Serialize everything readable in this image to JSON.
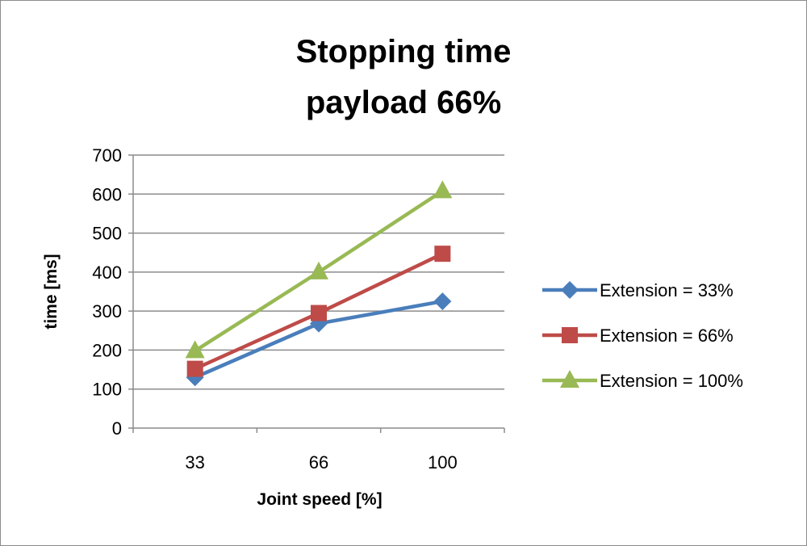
{
  "chart_data": {
    "type": "line",
    "title": "Stopping time",
    "subtitle": "payload 66%",
    "xlabel": "Joint speed [%]",
    "ylabel": "time [ms]",
    "categories": [
      "33",
      "66",
      "100"
    ],
    "ylim": [
      0,
      700
    ],
    "yticks": [
      0,
      100,
      200,
      300,
      400,
      500,
      600,
      700
    ],
    "grid": true,
    "legend": "right",
    "series": [
      {
        "name": "Extension = 33%",
        "values": [
          130,
          268,
          325
        ],
        "color": "#4a7ebb",
        "marker": "diamond"
      },
      {
        "name": "Extension = 66%",
        "values": [
          152,
          295,
          447
        ],
        "color": "#be4b48",
        "marker": "square"
      },
      {
        "name": "Extension = 100%",
        "values": [
          198,
          400,
          608
        ],
        "color": "#98b954",
        "marker": "triangle"
      }
    ]
  }
}
